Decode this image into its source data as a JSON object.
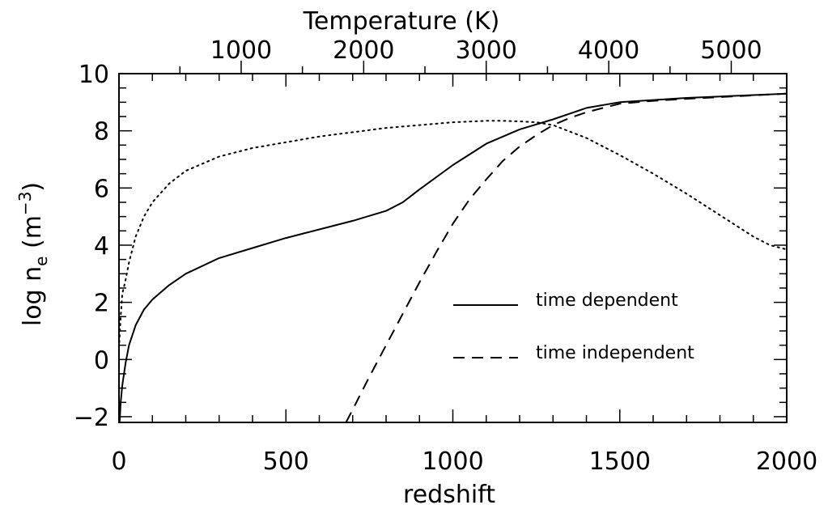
{
  "chart_data": {
    "type": "line",
    "title": "",
    "xlabel": "redshift",
    "ylabel_parts": {
      "main": "log n",
      "sub": "e",
      "unit_pre": " (m",
      "unit_sup": "−3",
      "unit_post": ")"
    },
    "top_axis_label": "Temperature (K)",
    "xlim": [
      0,
      2000
    ],
    "ylim": [
      -2.2,
      10
    ],
    "x_ticks": [
      "0",
      "500",
      "1000",
      "1500",
      "2000"
    ],
    "y_ticks": [
      "−2",
      "0",
      "2",
      "4",
      "6",
      "8",
      "10"
    ],
    "top_ticks": [
      "1000",
      "2000",
      "3000",
      "4000",
      "5000"
    ],
    "legend": {
      "placement": "lower-right",
      "entries": [
        {
          "label": "time dependent",
          "dash": "solid"
        },
        {
          "label": "time independent",
          "dash": "dashed"
        }
      ]
    },
    "series": [
      {
        "name": "time dependent",
        "style": "solid",
        "x": [
          2,
          5,
          10,
          20,
          30,
          50,
          75,
          100,
          150,
          200,
          300,
          400,
          500,
          600,
          700,
          800,
          850,
          900,
          1000,
          1100,
          1200,
          1300,
          1400,
          1500,
          1700,
          2000
        ],
        "y": [
          -2.2,
          -1.5,
          -0.9,
          -0.1,
          0.5,
          1.2,
          1.75,
          2.1,
          2.6,
          3.0,
          3.55,
          3.9,
          4.25,
          4.55,
          4.85,
          5.2,
          5.5,
          5.95,
          6.8,
          7.55,
          8.05,
          8.4,
          8.8,
          9.0,
          9.15,
          9.3
        ]
      },
      {
        "style": "dashed",
        "x": [
          680,
          700,
          750,
          800,
          850,
          900,
          950,
          1000,
          1050,
          1100,
          1150,
          1200,
          1250,
          1300,
          1350,
          1400,
          1450,
          1500,
          1600,
          1700,
          2000
        ],
        "y": [
          -2.2,
          -1.75,
          -0.6,
          0.5,
          1.6,
          2.7,
          3.75,
          4.75,
          5.6,
          6.3,
          6.95,
          7.45,
          7.85,
          8.2,
          8.45,
          8.65,
          8.8,
          8.95,
          9.05,
          9.12,
          9.3
        ]
      },
      {
        "style": "dotted",
        "x": [
          1,
          5,
          10,
          20,
          30,
          50,
          75,
          100,
          150,
          200,
          300,
          400,
          500,
          600,
          700,
          800,
          900,
          1000,
          1100,
          1150,
          1200,
          1250,
          1300,
          1400,
          1500,
          1600,
          1700,
          1800,
          1900,
          1950,
          2000
        ],
        "y": [
          0.6,
          1.5,
          2.3,
          2.8,
          3.4,
          4.3,
          5.0,
          5.5,
          6.15,
          6.6,
          7.1,
          7.4,
          7.6,
          7.8,
          7.95,
          8.1,
          8.2,
          8.3,
          8.35,
          8.35,
          8.33,
          8.3,
          8.2,
          7.75,
          7.15,
          6.5,
          5.8,
          5.05,
          4.3,
          4.0,
          3.85
        ]
      }
    ]
  }
}
